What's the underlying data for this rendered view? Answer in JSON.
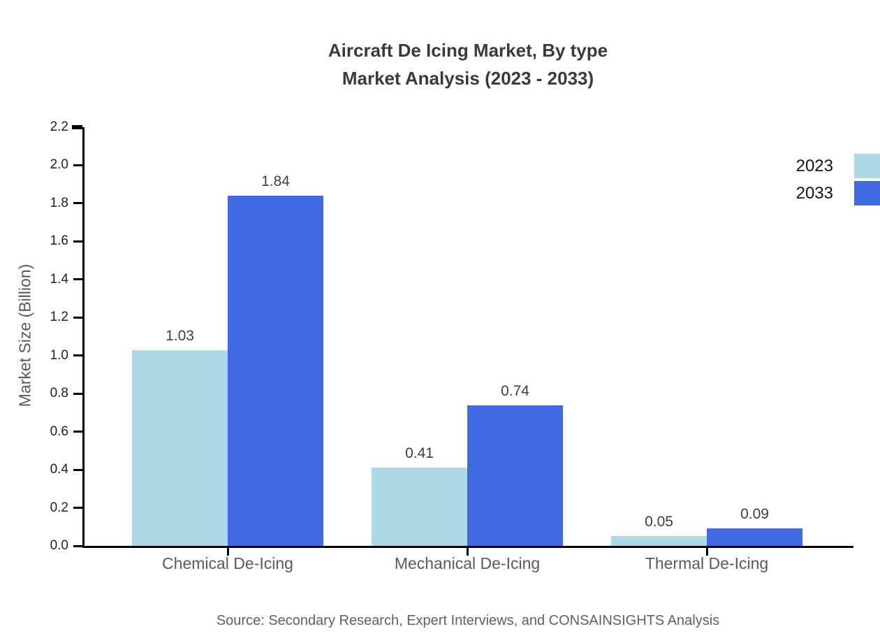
{
  "title": {
    "line1": "Aircraft De Icing Market, By type",
    "line2": "Market Analysis (2023 - 2033)"
  },
  "source": "Source: Secondary Research, Expert Interviews, and CONSAINSIGHTS Analysis",
  "chart_data": {
    "type": "bar",
    "title": "Aircraft De Icing Market, By type Market Analysis (2023 - 2033)",
    "categories": [
      "Chemical De-Icing",
      "Mechanical De-Icing",
      "Thermal De-Icing"
    ],
    "series": [
      {
        "name": "2023",
        "color": "#ADD8E6",
        "values": [
          1.03,
          0.41,
          0.05
        ]
      },
      {
        "name": "2033",
        "color": "#4169E1",
        "values": [
          1.84,
          0.74,
          0.09
        ]
      }
    ],
    "xlabel": "",
    "ylabel": "Market Size (Billion)",
    "ylim": [
      0,
      2.2
    ],
    "ytick_step": 0.2,
    "yticks": [
      "0.0",
      "0.2",
      "0.4",
      "0.6",
      "0.8",
      "1.0",
      "1.2",
      "1.4",
      "1.6",
      "1.8",
      "2.0",
      "2.2"
    ],
    "grid": false,
    "bar_value_labels": true,
    "legend_position": "upper-right"
  }
}
